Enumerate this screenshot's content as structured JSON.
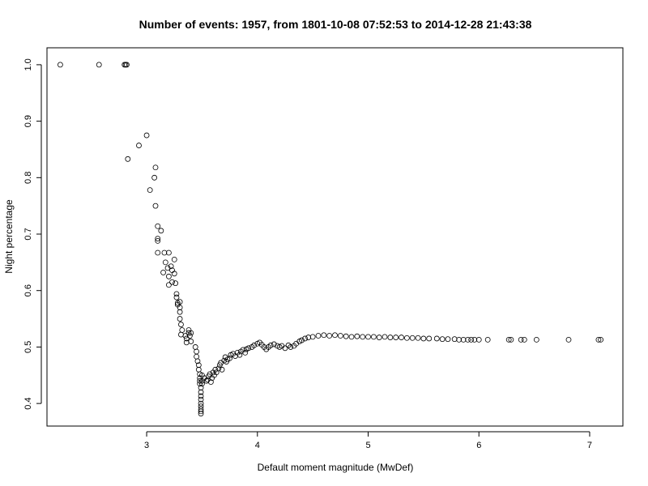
{
  "chart_data": {
    "type": "scatter",
    "title": "Number of events: 1957, from 1801-10-08 07:52:53 to 2014-12-28 21:43:38",
    "xlabel": "Default moment magnitude (MwDef)",
    "ylabel": "Night percentage",
    "xlim": [
      2.1,
      7.3
    ],
    "ylim": [
      0.36,
      1.03
    ],
    "xticks": [
      3,
      4,
      5,
      6,
      7
    ],
    "yticks": [
      0.4,
      0.5,
      0.6,
      0.7,
      0.8,
      0.9,
      1.0
    ],
    "ytick_labels": [
      "0.4",
      "0.5",
      "0.6",
      "0.7",
      "0.8",
      "0.9",
      "1.0"
    ],
    "grid": false,
    "marker": "open-circle",
    "points": [
      [
        2.22,
        1.0
      ],
      [
        2.57,
        1.0
      ],
      [
        2.8,
        1.0
      ],
      [
        2.81,
        1.0
      ],
      [
        2.82,
        1.0
      ],
      [
        2.83,
        0.833
      ],
      [
        2.93,
        0.857
      ],
      [
        3.0,
        0.875
      ],
      [
        3.03,
        0.778
      ],
      [
        3.07,
        0.8
      ],
      [
        3.08,
        0.818
      ],
      [
        3.08,
        0.75
      ],
      [
        3.1,
        0.714
      ],
      [
        3.1,
        0.692
      ],
      [
        3.1,
        0.688
      ],
      [
        3.13,
        0.706
      ],
      [
        3.1,
        0.667
      ],
      [
        3.15,
        0.632
      ],
      [
        3.16,
        0.667
      ],
      [
        3.17,
        0.65
      ],
      [
        3.19,
        0.64
      ],
      [
        3.2,
        0.667
      ],
      [
        3.2,
        0.625
      ],
      [
        3.2,
        0.61
      ],
      [
        3.22,
        0.643
      ],
      [
        3.23,
        0.636
      ],
      [
        3.23,
        0.615
      ],
      [
        3.25,
        0.655
      ],
      [
        3.25,
        0.63
      ],
      [
        3.26,
        0.613
      ],
      [
        3.27,
        0.594
      ],
      [
        3.27,
        0.588
      ],
      [
        3.28,
        0.578
      ],
      [
        3.28,
        0.575
      ],
      [
        3.3,
        0.58
      ],
      [
        3.3,
        0.57
      ],
      [
        3.3,
        0.562
      ],
      [
        3.3,
        0.55
      ],
      [
        3.31,
        0.54
      ],
      [
        3.32,
        0.53
      ],
      [
        3.31,
        0.522
      ],
      [
        3.35,
        0.52
      ],
      [
        3.36,
        0.515
      ],
      [
        3.36,
        0.508
      ],
      [
        3.38,
        0.53
      ],
      [
        3.38,
        0.525
      ],
      [
        3.39,
        0.52
      ],
      [
        3.4,
        0.51
      ],
      [
        3.4,
        0.525
      ],
      [
        3.44,
        0.5
      ],
      [
        3.45,
        0.492
      ],
      [
        3.45,
        0.483
      ],
      [
        3.46,
        0.475
      ],
      [
        3.47,
        0.468
      ],
      [
        3.47,
        0.46
      ],
      [
        3.48,
        0.452
      ],
      [
        3.48,
        0.445
      ],
      [
        3.48,
        0.44
      ],
      [
        3.48,
        0.435
      ],
      [
        3.49,
        0.428
      ],
      [
        3.49,
        0.42
      ],
      [
        3.49,
        0.413
      ],
      [
        3.49,
        0.407
      ],
      [
        3.49,
        0.4
      ],
      [
        3.49,
        0.395
      ],
      [
        3.49,
        0.39
      ],
      [
        3.49,
        0.386
      ],
      [
        3.49,
        0.382
      ],
      [
        3.5,
        0.45
      ],
      [
        3.5,
        0.44
      ],
      [
        3.5,
        0.435
      ],
      [
        3.52,
        0.445
      ],
      [
        3.54,
        0.44
      ],
      [
        3.55,
        0.442
      ],
      [
        3.56,
        0.448
      ],
      [
        3.57,
        0.452
      ],
      [
        3.58,
        0.438
      ],
      [
        3.59,
        0.445
      ],
      [
        3.6,
        0.455
      ],
      [
        3.61,
        0.45
      ],
      [
        3.62,
        0.46
      ],
      [
        3.63,
        0.455
      ],
      [
        3.65,
        0.462
      ],
      [
        3.66,
        0.468
      ],
      [
        3.67,
        0.472
      ],
      [
        3.68,
        0.46
      ],
      [
        3.7,
        0.476
      ],
      [
        3.71,
        0.482
      ],
      [
        3.72,
        0.474
      ],
      [
        3.73,
        0.478
      ],
      [
        3.75,
        0.48
      ],
      [
        3.76,
        0.486
      ],
      [
        3.78,
        0.488
      ],
      [
        3.8,
        0.484
      ],
      [
        3.82,
        0.49
      ],
      [
        3.84,
        0.486
      ],
      [
        3.85,
        0.492
      ],
      [
        3.87,
        0.495
      ],
      [
        3.89,
        0.49
      ],
      [
        3.9,
        0.496
      ],
      [
        3.92,
        0.498
      ],
      [
        3.95,
        0.5
      ],
      [
        3.97,
        0.503
      ],
      [
        4.0,
        0.506
      ],
      [
        4.02,
        0.508
      ],
      [
        4.04,
        0.504
      ],
      [
        4.06,
        0.5
      ],
      [
        4.08,
        0.496
      ],
      [
        4.1,
        0.5
      ],
      [
        4.12,
        0.503
      ],
      [
        4.15,
        0.505
      ],
      [
        4.18,
        0.502
      ],
      [
        4.2,
        0.5
      ],
      [
        4.22,
        0.502
      ],
      [
        4.25,
        0.498
      ],
      [
        4.28,
        0.503
      ],
      [
        4.3,
        0.5
      ],
      [
        4.33,
        0.502
      ],
      [
        4.35,
        0.506
      ],
      [
        4.38,
        0.51
      ],
      [
        4.4,
        0.512
      ],
      [
        4.43,
        0.515
      ],
      [
        4.46,
        0.517
      ],
      [
        4.5,
        0.518
      ],
      [
        4.55,
        0.52
      ],
      [
        4.6,
        0.521
      ],
      [
        4.65,
        0.52
      ],
      [
        4.7,
        0.521
      ],
      [
        4.75,
        0.52
      ],
      [
        4.8,
        0.519
      ],
      [
        4.85,
        0.518
      ],
      [
        4.9,
        0.519
      ],
      [
        4.95,
        0.518
      ],
      [
        5.0,
        0.518
      ],
      [
        5.05,
        0.518
      ],
      [
        5.1,
        0.517
      ],
      [
        5.15,
        0.518
      ],
      [
        5.2,
        0.517
      ],
      [
        5.25,
        0.517
      ],
      [
        5.3,
        0.517
      ],
      [
        5.35,
        0.516
      ],
      [
        5.4,
        0.516
      ],
      [
        5.45,
        0.516
      ],
      [
        5.5,
        0.515
      ],
      [
        5.55,
        0.515
      ],
      [
        5.62,
        0.515
      ],
      [
        5.67,
        0.514
      ],
      [
        5.72,
        0.514
      ],
      [
        5.78,
        0.514
      ],
      [
        5.82,
        0.513
      ],
      [
        5.86,
        0.513
      ],
      [
        5.9,
        0.513
      ],
      [
        5.93,
        0.513
      ],
      [
        5.96,
        0.513
      ],
      [
        6.0,
        0.513
      ],
      [
        6.08,
        0.513
      ],
      [
        6.27,
        0.513
      ],
      [
        6.29,
        0.513
      ],
      [
        6.38,
        0.513
      ],
      [
        6.41,
        0.513
      ],
      [
        6.52,
        0.513
      ],
      [
        6.81,
        0.513
      ],
      [
        7.08,
        0.513
      ],
      [
        7.1,
        0.513
      ]
    ]
  }
}
